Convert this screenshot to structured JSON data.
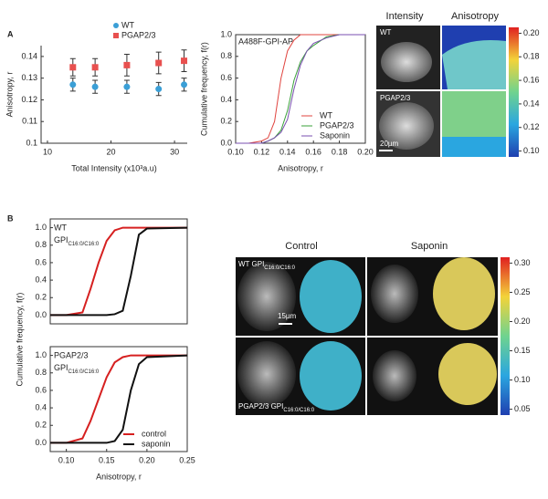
{
  "panels": {
    "a": "A",
    "b": "B"
  },
  "chart_data": [
    {
      "type": "scatter",
      "xlabel": "Total Intensity (x10³a.u)",
      "ylabel": "Anisotropy, r",
      "x": [
        14,
        17.5,
        22.5,
        27.5,
        31.5
      ],
      "series": [
        {
          "name": "WT",
          "color": "#3b9fd6",
          "marker": "circle",
          "values": [
            0.127,
            0.126,
            0.126,
            0.125,
            0.127
          ],
          "errors": [
            0.003,
            0.003,
            0.003,
            0.003,
            0.003
          ]
        },
        {
          "name": "PGAP2/3",
          "color": "#e8504f",
          "marker": "square",
          "values": [
            0.135,
            0.135,
            0.136,
            0.137,
            0.138
          ],
          "errors": [
            0.004,
            0.004,
            0.005,
            0.005,
            0.005
          ]
        }
      ],
      "xlim": [
        9,
        32
      ],
      "xticks": [
        10,
        20,
        30
      ],
      "ylim": [
        0.1,
        0.145
      ],
      "yticks": [
        0.1,
        0.11,
        0.12,
        0.13,
        0.14
      ],
      "legend": "upper right"
    },
    {
      "type": "line",
      "annotation": "A488F-GPI-AP",
      "xlabel": "Anisotropy, r",
      "ylabel": "Cumulative frequency, f(r)",
      "x": [
        0.1,
        0.11,
        0.12,
        0.125,
        0.13,
        0.135,
        0.14,
        0.145,
        0.15,
        0.155,
        0.16,
        0.17,
        0.18,
        0.19,
        0.2
      ],
      "series": [
        {
          "name": "WT",
          "color": "#e0443f",
          "values": [
            0,
            0,
            0.02,
            0.05,
            0.2,
            0.6,
            0.85,
            0.95,
            1,
            1,
            1,
            1,
            1,
            1,
            1
          ]
        },
        {
          "name": "PGAP2/3",
          "color": "#3aa13a",
          "values": [
            0,
            0,
            0,
            0.02,
            0.05,
            0.12,
            0.3,
            0.58,
            0.75,
            0.85,
            0.9,
            0.98,
            1,
            1,
            1
          ]
        },
        {
          "name": "Saponin",
          "color": "#7a4fb0",
          "values": [
            0,
            0,
            0,
            0.02,
            0.05,
            0.1,
            0.22,
            0.5,
            0.72,
            0.85,
            0.92,
            0.97,
            1,
            1,
            1
          ]
        }
      ],
      "xlim": [
        0.1,
        0.2
      ],
      "xticks": [
        {
          "value": 0.1,
          "label": "0.10"
        },
        {
          "value": 0.12,
          "label": "0.12"
        },
        {
          "value": 0.14,
          "label": "0.14"
        },
        {
          "value": 0.16,
          "label": "0.16"
        },
        {
          "value": 0.18,
          "label": "0.18"
        },
        {
          "value": 0.2,
          "label": "0.20"
        }
      ],
      "ylim": [
        0,
        1.0
      ],
      "yticks": [
        {
          "value": 0,
          "label": "0.0"
        },
        {
          "value": 0.2,
          "label": "0.2"
        },
        {
          "value": 0.4,
          "label": "0.4"
        },
        {
          "value": 0.6,
          "label": "0.6"
        },
        {
          "value": 0.8,
          "label": "0.8"
        },
        {
          "value": 1,
          "label": "1.0"
        }
      ],
      "legend": "lower right"
    },
    {
      "type": "line",
      "annotation": [
        "WT",
        "GPI",
        "C16:0/C16:0"
      ],
      "x": [
        0.08,
        0.1,
        0.12,
        0.13,
        0.14,
        0.15,
        0.16,
        0.17,
        0.18,
        0.19,
        0.2,
        0.25
      ],
      "series": [
        {
          "name": "control",
          "color": "#d62020",
          "values": [
            0,
            0,
            0.03,
            0.3,
            0.6,
            0.85,
            0.97,
            1,
            1,
            1,
            1,
            1
          ]
        },
        {
          "name": "saponin",
          "color": "#111111",
          "values": [
            0,
            0,
            0,
            0,
            0,
            0,
            0.01,
            0.05,
            0.45,
            0.92,
            0.99,
            1
          ]
        }
      ],
      "xlim": [
        0.08,
        0.25
      ],
      "ylim": [
        -0.1,
        1.1
      ],
      "yticks": [
        {
          "value": 0,
          "label": "0.0"
        },
        {
          "value": 0.2,
          "label": "0.2"
        },
        {
          "value": 0.4,
          "label": "0.4"
        },
        {
          "value": 0.6,
          "label": "0.6"
        },
        {
          "value": 0.8,
          "label": "0.8"
        },
        {
          "value": 1,
          "label": "1.0"
        }
      ]
    },
    {
      "type": "line",
      "annotation": [
        "PGAP2/3",
        "GPI",
        "C16:0/C16:0"
      ],
      "xlabel": "Anisotropy, r",
      "ylabel": "Cumulative frequency, f(r)",
      "x": [
        0.08,
        0.1,
        0.12,
        0.13,
        0.14,
        0.15,
        0.16,
        0.17,
        0.18,
        0.19,
        0.2,
        0.25
      ],
      "series": [
        {
          "name": "control",
          "color": "#d62020",
          "values": [
            0,
            0,
            0.05,
            0.25,
            0.5,
            0.75,
            0.92,
            0.98,
            1,
            1,
            1,
            1
          ]
        },
        {
          "name": "saponin",
          "color": "#111111",
          "values": [
            0,
            0,
            0,
            0,
            0,
            0,
            0.02,
            0.15,
            0.6,
            0.9,
            0.98,
            1
          ]
        }
      ],
      "xlim": [
        0.08,
        0.25
      ],
      "xticks": [
        {
          "value": 0.1,
          "label": "0.10"
        },
        {
          "value": 0.15,
          "label": "0.15"
        },
        {
          "value": 0.2,
          "label": "0.20"
        },
        {
          "value": 0.25,
          "label": "0.25"
        }
      ],
      "ylim": [
        -0.1,
        1.1
      ],
      "yticks": [
        {
          "value": 0,
          "label": "0.0"
        },
        {
          "value": 0.2,
          "label": "0.2"
        },
        {
          "value": 0.4,
          "label": "0.4"
        },
        {
          "value": 0.6,
          "label": "0.6"
        },
        {
          "value": 0.8,
          "label": "0.8"
        },
        {
          "value": 1,
          "label": "1.0"
        }
      ],
      "legend": "lower right"
    }
  ],
  "images": {
    "a": {
      "columns": [
        "Intensity",
        "Anisotropy"
      ],
      "rows": [
        "WT",
        "PGAP2/3"
      ],
      "scale_bar": "20µm",
      "colorbar": {
        "lim": [
          0.095,
          0.205
        ],
        "ticks": [
          {
            "value": 0.1,
            "label": "0.10"
          },
          {
            "value": 0.12,
            "label": "0.12"
          },
          {
            "value": 0.14,
            "label": "0.14"
          },
          {
            "value": 0.16,
            "label": "0.16"
          },
          {
            "value": 0.18,
            "label": "0.18"
          },
          {
            "value": 0.2,
            "label": "0.20"
          }
        ]
      }
    },
    "b": {
      "columns": [
        "Control",
        "Saponin"
      ],
      "rows": [
        {
          "label": "WT GPI",
          "sub": "C16:0/C16:0"
        },
        {
          "label": "PGAP2/3 GPI",
          "sub": "C16:0/C16:0"
        }
      ],
      "scale_bar": "15µm",
      "colorbar": {
        "lim": [
          0.04,
          0.31
        ],
        "ticks": [
          {
            "value": 0.05,
            "label": "0.05"
          },
          {
            "value": 0.1,
            "label": "0.10"
          },
          {
            "value": 0.15,
            "label": "0.15"
          },
          {
            "value": 0.2,
            "label": "0.20"
          },
          {
            "value": 0.25,
            "label": "0.25"
          },
          {
            "value": 0.3,
            "label": "0.30"
          }
        ]
      }
    }
  }
}
